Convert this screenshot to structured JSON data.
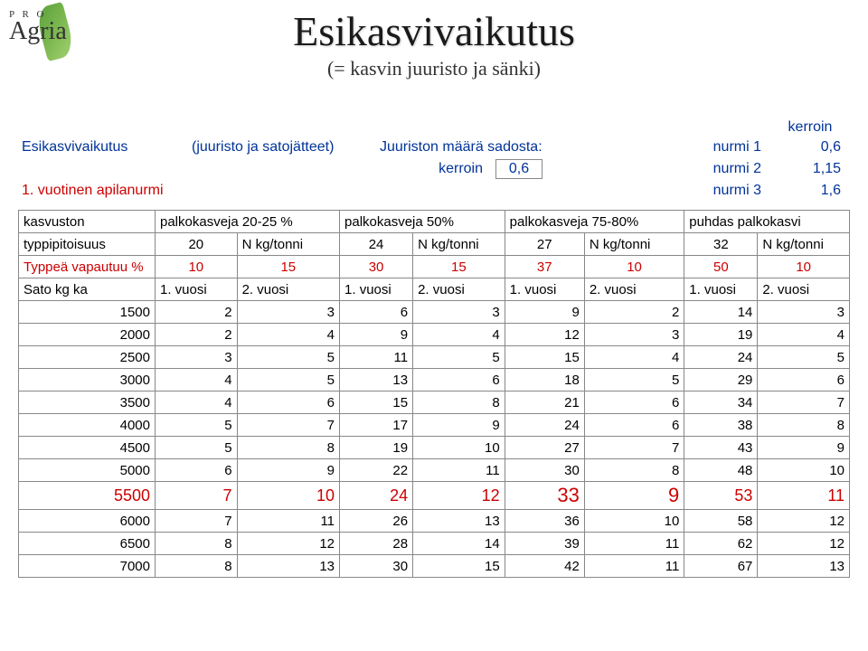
{
  "logo": {
    "pro": "P R O",
    "agria": "Agria"
  },
  "title": "Esikasvivaikutus",
  "subtitle": "(= kasvin juuristo ja sänki)",
  "upper": {
    "kerroin_label": "kerroin",
    "r1_c1": "Esikasvivaikutus",
    "r1_c2": "(juuristo ja satojätteet)",
    "r1_c3": "Juuriston määrä sadosta:",
    "r1_c4": "nurmi 1",
    "r1_c5": "0,6",
    "r2_c1": "kerroin",
    "r2_box": "0,6",
    "r2_c3": "nurmi 2",
    "r2_c4": "1,15",
    "r3_c1": "1. vuotinen apilanurmi",
    "r3_c3": "nurmi 3",
    "r3_c4": "1,6"
  },
  "headers": {
    "kasvuston": "kasvuston",
    "typpipitoisuus": "typpipitoisuus",
    "g1": "palkokasveja 20-25 %",
    "g2": "palkokasveja 50%",
    "g3": "palkokasveja 75-80%",
    "g4": "puhdas palkokasvi",
    "v": [
      "20",
      "N kg/tonni",
      "24",
      "N kg/tonni",
      "27",
      "N kg/tonni",
      "32",
      "N kg/tonni"
    ]
  },
  "typpea": {
    "label": "Typpeä vapautuu %",
    "vals": [
      "10",
      "15",
      "30",
      "15",
      "37",
      "10",
      "50",
      "10"
    ]
  },
  "sato": {
    "label": "Sato kg ka",
    "vals": [
      "1. vuosi",
      "2. vuosi",
      "1. vuosi",
      "2. vuosi",
      "1. vuosi",
      "2. vuosi",
      "1. vuosi",
      "2. vuosi"
    ]
  },
  "rows": [
    {
      "k": "1500",
      "v": [
        "2",
        "3",
        "6",
        "3",
        "9",
        "2",
        "14",
        "3"
      ]
    },
    {
      "k": "2000",
      "v": [
        "2",
        "4",
        "9",
        "4",
        "12",
        "3",
        "19",
        "4"
      ]
    },
    {
      "k": "2500",
      "v": [
        "3",
        "5",
        "11",
        "5",
        "15",
        "4",
        "24",
        "5"
      ]
    },
    {
      "k": "3000",
      "v": [
        "4",
        "5",
        "13",
        "6",
        "18",
        "5",
        "29",
        "6"
      ]
    },
    {
      "k": "3500",
      "v": [
        "4",
        "6",
        "15",
        "8",
        "21",
        "6",
        "34",
        "7"
      ]
    },
    {
      "k": "4000",
      "v": [
        "5",
        "7",
        "17",
        "9",
        "24",
        "6",
        "38",
        "8"
      ]
    },
    {
      "k": "4500",
      "v": [
        "5",
        "8",
        "19",
        "10",
        "27",
        "7",
        "43",
        "9"
      ]
    },
    {
      "k": "5000",
      "v": [
        "6",
        "9",
        "22",
        "11",
        "30",
        "8",
        "48",
        "10"
      ]
    },
    {
      "k": "5500",
      "v": [
        "7",
        "10",
        "24",
        "12",
        "33",
        "9",
        "53",
        "11"
      ],
      "hl": true
    },
    {
      "k": "6000",
      "v": [
        "7",
        "11",
        "26",
        "13",
        "36",
        "10",
        "58",
        "12"
      ]
    },
    {
      "k": "6500",
      "v": [
        "8",
        "12",
        "28",
        "14",
        "39",
        "11",
        "62",
        "12"
      ]
    },
    {
      "k": "7000",
      "v": [
        "8",
        "13",
        "30",
        "15",
        "42",
        "11",
        "67",
        "13"
      ]
    }
  ],
  "colors": {
    "blue": "#003399",
    "red": "#cc0000",
    "border": "#888888",
    "bg": "#ffffff"
  }
}
